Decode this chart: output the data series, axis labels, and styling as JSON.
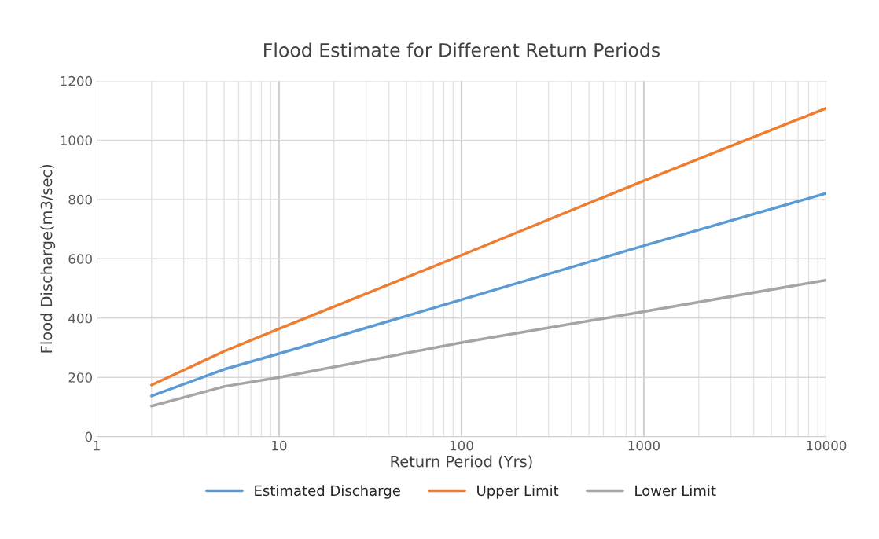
{
  "chart_data": {
    "type": "line",
    "title": "Flood Estimate for Different Return Periods",
    "xlabel": "Return Period (Yrs)",
    "ylabel": "Flood Discharge(m3/sec)",
    "x": [
      2,
      5,
      10,
      100,
      1000,
      10000
    ],
    "series": [
      {
        "name": "Estimated Discharge",
        "color": "#5b9bd5",
        "values": [
          137,
          227,
          280,
          462,
          644,
          821
        ]
      },
      {
        "name": "Upper Limit",
        "color": "#ed7d31",
        "values": [
          174,
          288,
          364,
          612,
          863,
          1108
        ]
      },
      {
        "name": "Lower Limit",
        "color": "#a5a5a5",
        "values": [
          103,
          169,
          200,
          317,
          422,
          528
        ]
      }
    ],
    "log": "x",
    "xlim": [
      1,
      10000
    ],
    "xticks": [
      1,
      10,
      100,
      1000,
      10000
    ],
    "ylim": [
      0,
      1200
    ],
    "yticks": [
      0,
      200,
      400,
      600,
      800,
      1000,
      1200
    ],
    "grid": true,
    "legend": "bottom",
    "marker": "none",
    "line_style": "solid"
  }
}
